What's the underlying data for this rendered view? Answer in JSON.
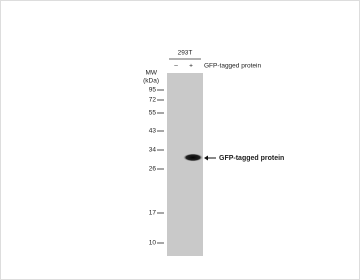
{
  "sample": "293T",
  "lanes": [
    "–",
    "+"
  ],
  "lane_row_label": "GFP-tagged protein",
  "mw_label": "MW",
  "mw_unit": "(kDa)",
  "markers": [
    "95",
    "72",
    "55",
    "43",
    "34",
    "26",
    "17",
    "10"
  ],
  "band_label": "GFP-tagged protein"
}
